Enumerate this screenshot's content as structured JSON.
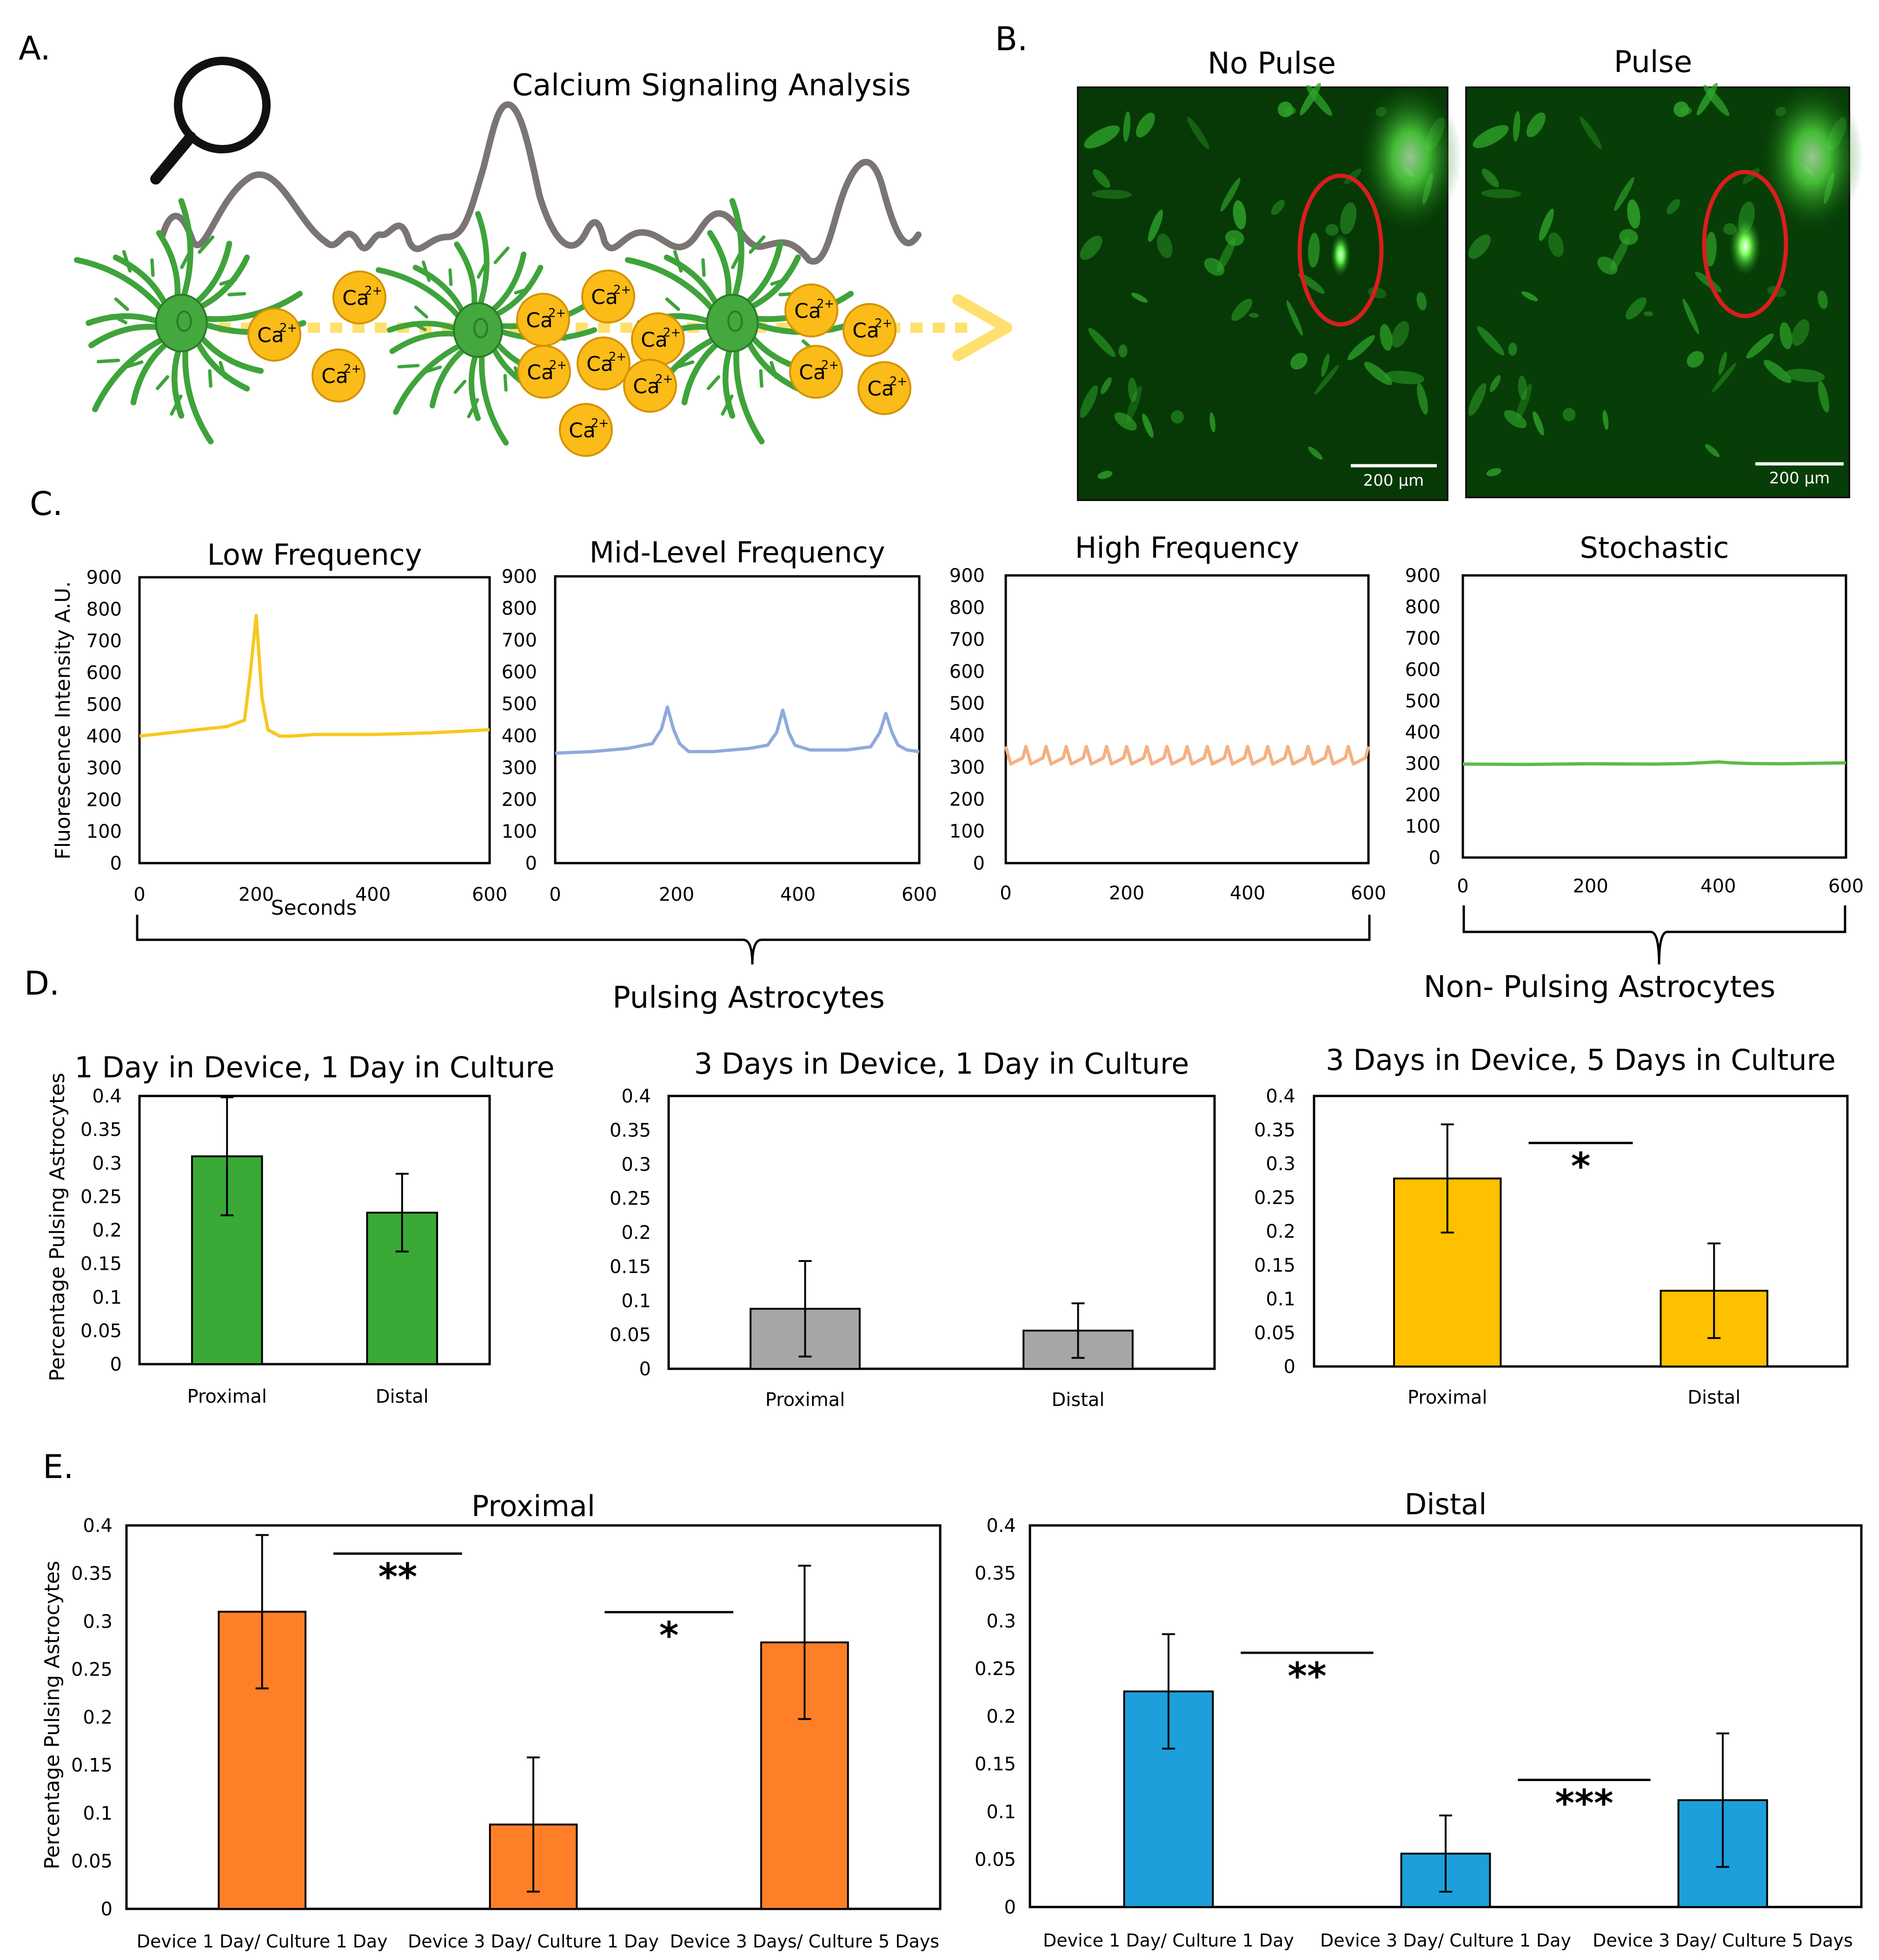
{
  "panel_letters": {
    "a": "A.",
    "b": "B.",
    "c": "C.",
    "d": "D.",
    "e": "E."
  },
  "panel_a": {
    "title": "Calcium Signaling Analysis",
    "ion_base": "Ca",
    "ion_charge": "2+"
  },
  "panel_b": {
    "left_title": "No Pulse",
    "right_title": "Pulse",
    "scale_bar": "200 μm"
  },
  "colors": {
    "low": "#f7c81e",
    "mid": "#8faadc",
    "high": "#f4b183",
    "stochastic": "#5dbb46",
    "green_bar": "#3aa935",
    "gray_bar": "#a6a6a6",
    "yellow_bar": "#ffc000",
    "orange_bar": "#fe7f28",
    "blue_bar": "#1c9fda",
    "circle": "#d91e1e"
  },
  "brackets": {
    "pulsing": "Pulsing Astrocytes",
    "non_pulsing": "Non- Pulsing Astrocytes"
  },
  "chart_data": [
    {
      "id": "c1",
      "type": "line",
      "title": "Low Frequency",
      "ylabel": "Fluorescence Intensity A.U.",
      "xlabel": "Seconds",
      "xlim": [
        0,
        600
      ],
      "ylim": [
        0,
        900
      ],
      "xticks": [
        "0",
        "200",
        "400",
        "600"
      ],
      "yticks": [
        "0",
        "100",
        "200",
        "300",
        "400",
        "500",
        "600",
        "700",
        "800",
        "900"
      ],
      "series": [
        {
          "color": "#f7c81e",
          "x": [
            0,
            50,
            100,
            150,
            180,
            190,
            200,
            210,
            220,
            240,
            260,
            300,
            400,
            500,
            600
          ],
          "y": [
            400,
            410,
            420,
            430,
            450,
            600,
            780,
            520,
            420,
            400,
            400,
            405,
            405,
            410,
            420
          ]
        }
      ]
    },
    {
      "id": "c2",
      "type": "line",
      "title": "Mid-Level Frequency",
      "xlim": [
        0,
        600
      ],
      "ylim": [
        0,
        900
      ],
      "xticks": [
        "0",
        "200",
        "400",
        "600"
      ],
      "yticks": [
        "0",
        "100",
        "200",
        "300",
        "400",
        "500",
        "600",
        "700",
        "800",
        "900"
      ],
      "series": [
        {
          "color": "#8faadc",
          "x": [
            0,
            60,
            120,
            160,
            175,
            185,
            195,
            205,
            220,
            260,
            320,
            350,
            365,
            375,
            385,
            395,
            420,
            480,
            520,
            535,
            545,
            555,
            565,
            580,
            600
          ],
          "y": [
            345,
            350,
            360,
            375,
            420,
            490,
            420,
            375,
            350,
            350,
            360,
            370,
            410,
            480,
            410,
            370,
            355,
            355,
            365,
            410,
            470,
            410,
            370,
            355,
            350
          ]
        }
      ]
    },
    {
      "id": "c3",
      "type": "line",
      "title": "High Frequency",
      "xlim": [
        0,
        600
      ],
      "ylim": [
        0,
        900
      ],
      "xticks": [
        "0",
        "200",
        "400",
        "600"
      ],
      "yticks": [
        "0",
        "100",
        "200",
        "300",
        "400",
        "500",
        "600",
        "700",
        "800",
        "900"
      ],
      "series": [
        {
          "color": "#f4b183",
          "pattern": "sawtooth",
          "base": 310,
          "peak": 365,
          "cycles": 18
        }
      ]
    },
    {
      "id": "c4",
      "type": "line",
      "title": "Stochastic",
      "xlim": [
        0,
        600
      ],
      "ylim": [
        0,
        900
      ],
      "xticks": [
        "0",
        "200",
        "400",
        "600"
      ],
      "yticks": [
        "0",
        "100",
        "200",
        "300",
        "400",
        "500",
        "600",
        "700",
        "800",
        "900"
      ],
      "series": [
        {
          "color": "#5dbb46",
          "x": [
            0,
            100,
            200,
            300,
            350,
            400,
            420,
            450,
            500,
            600
          ],
          "y": [
            298,
            297,
            299,
            298,
            300,
            305,
            302,
            300,
            299,
            302
          ]
        }
      ]
    },
    {
      "id": "d1",
      "type": "bar",
      "title": "1 Day in Device, 1 Day in Culture",
      "ylabel": "Percentage Pulsing Astrocytes",
      "categories": [
        "Proximal",
        "Distal"
      ],
      "values": [
        0.31,
        0.226
      ],
      "errors": [
        0.088,
        0.058
      ],
      "ylim": [
        0,
        0.4
      ],
      "yticks": [
        "0",
        "0.05",
        "0.1",
        "0.15",
        "0.2",
        "0.25",
        "0.3",
        "0.35",
        "0.4"
      ],
      "color": "#3aa935"
    },
    {
      "id": "d2",
      "type": "bar",
      "title": "3 Days in Device, 1 Day in Culture",
      "categories": [
        "Proximal",
        "Distal"
      ],
      "values": [
        0.088,
        0.056
      ],
      "errors": [
        0.07,
        0.04
      ],
      "ylim": [
        0,
        0.4
      ],
      "yticks": [
        "0",
        "0.05",
        "0.1",
        "0.15",
        "0.2",
        "0.25",
        "0.3",
        "0.35",
        "0.4"
      ],
      "color": "#a6a6a6"
    },
    {
      "id": "d3",
      "type": "bar",
      "title": "3 Days in Device, 5 Days in Culture",
      "categories": [
        "Proximal",
        "Distal"
      ],
      "values": [
        0.278,
        0.112
      ],
      "errors": [
        0.08,
        0.07
      ],
      "ylim": [
        0,
        0.4
      ],
      "yticks": [
        "0",
        "0.05",
        "0.1",
        "0.15",
        "0.2",
        "0.25",
        "0.3",
        "0.35",
        "0.4"
      ],
      "color": "#ffc000",
      "significance": [
        {
          "from": 0,
          "to": 1,
          "label": "*"
        }
      ]
    },
    {
      "id": "e1",
      "type": "bar",
      "title": "Proximal",
      "ylabel": "Percentage Pulsing Astrocytes",
      "categories": [
        "Device 1 Day/ Culture 1 Day",
        "Device 3 Day/ Culture 1 Day",
        "Device 3 Days/ Culture 5 Days"
      ],
      "values": [
        0.31,
        0.088,
        0.278
      ],
      "errors": [
        0.08,
        0.07,
        0.08
      ],
      "ylim": [
        0,
        0.4
      ],
      "yticks": [
        "0",
        "0.05",
        "0.1",
        "0.15",
        "0.2",
        "0.25",
        "0.3",
        "0.35",
        "0.4"
      ],
      "color": "#fe7f28",
      "significance": [
        {
          "from": 0,
          "to": 1,
          "label": "**"
        },
        {
          "from": 1,
          "to": 2,
          "label": "*"
        }
      ]
    },
    {
      "id": "e2",
      "type": "bar",
      "title": "Distal",
      "categories": [
        "Device 1 Day/ Culture 1 Day",
        "Device 3 Day/ Culture 1 Day",
        "Device 3 Day/ Culture 5 Days"
      ],
      "values": [
        0.226,
        0.056,
        0.112
      ],
      "errors": [
        0.06,
        0.04,
        0.07
      ],
      "ylim": [
        0,
        0.4
      ],
      "yticks": [
        "0",
        "0.05",
        "0.1",
        "0.15",
        "0.2",
        "0.25",
        "0.3",
        "0.35",
        "0.4"
      ],
      "color": "#1c9fda",
      "significance": [
        {
          "from": 0,
          "to": 1,
          "label": "**"
        },
        {
          "from": 1,
          "to": 2,
          "label": "***"
        }
      ]
    }
  ]
}
